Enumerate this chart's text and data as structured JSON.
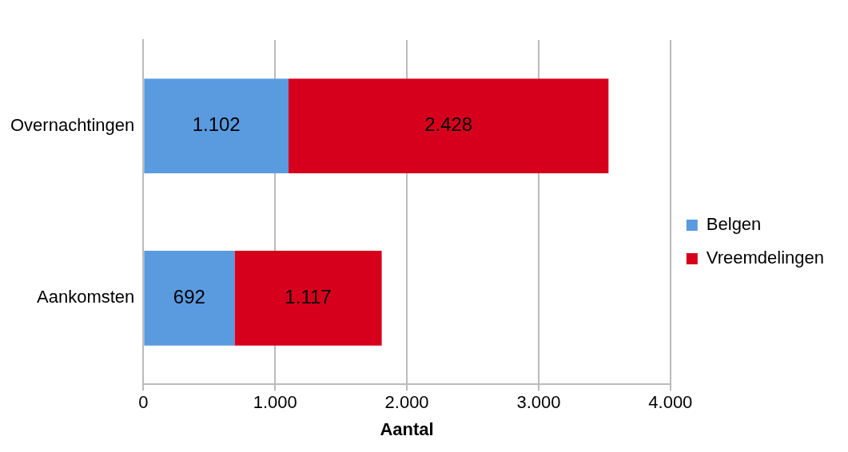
{
  "chart_data": {
    "type": "bar",
    "orientation": "horizontal",
    "stacked": true,
    "xlabel": "Aantal",
    "categories": [
      "Overnachtingen",
      "Aankomsten"
    ],
    "series": [
      {
        "name": "Belgen",
        "color": "#5a9be0",
        "values": [
          1102,
          692
        ],
        "value_labels": [
          "1.102",
          "692"
        ]
      },
      {
        "name": "Vreemdelingen",
        "color": "#d6001c",
        "values": [
          2428,
          1117
        ],
        "value_labels": [
          "2.428",
          "1.117"
        ]
      }
    ],
    "xlim": [
      0,
      4000
    ],
    "xticks": [
      0,
      {
        "value": 1000,
        "label": "1.000"
      },
      {
        "value": 2000,
        "label": "2.000"
      },
      {
        "value": 3000,
        "label": "3.000"
      },
      {
        "value": 4000,
        "label": "4.000"
      }
    ],
    "grid": "x",
    "legend": "right"
  }
}
